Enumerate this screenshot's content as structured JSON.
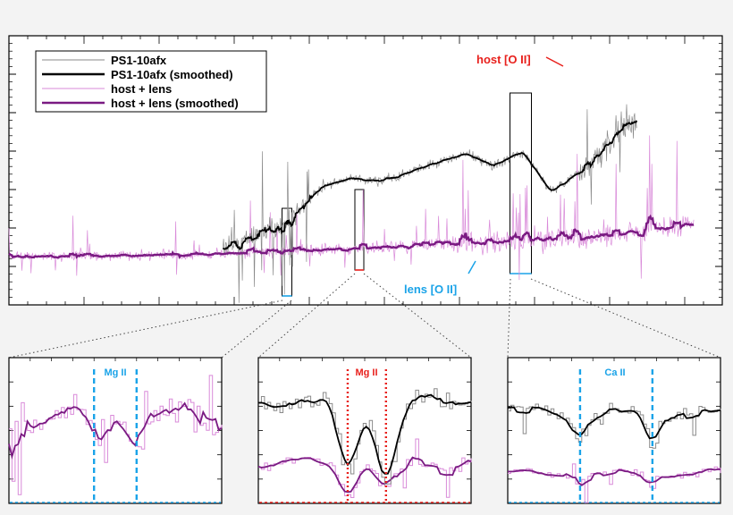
{
  "colors": {
    "grey": "#8a8a8a",
    "black": "#000000",
    "light_purple": "#d98ad9",
    "purple": "#7a1a82",
    "red": "#e8201c",
    "blue": "#1aa3e8",
    "background": "#f3f3f3"
  },
  "chart_data": [
    {
      "type": "line",
      "panel": "main",
      "title": "",
      "xlabel": "",
      "ylabel": "",
      "xlim": [
        0,
        100
      ],
      "ylim": [
        0,
        10
      ],
      "grid": false,
      "legend_position": "top-left",
      "series": [
        {
          "name": "PS1-10afx",
          "color_key": "grey",
          "style": "thin",
          "x": [
            30,
            33,
            36,
            40,
            44,
            48,
            52,
            56,
            60,
            64,
            68,
            72,
            76,
            80,
            84,
            86,
            88
          ],
          "y": [
            2.0,
            2.4,
            2.7,
            3.3,
            4.4,
            4.7,
            4.6,
            4.9,
            5.3,
            5.6,
            5.2,
            5.7,
            4.2,
            4.9,
            5.9,
            6.6,
            6.9
          ]
        },
        {
          "name": "PS1-10afx (smoothed)",
          "color_key": "black",
          "style": "thick",
          "x": [
            30,
            33,
            36,
            40,
            44,
            48,
            52,
            56,
            60,
            64,
            68,
            72,
            76,
            80,
            84,
            86,
            88
          ],
          "y": [
            2.0,
            2.4,
            2.7,
            3.3,
            4.4,
            4.7,
            4.6,
            4.9,
            5.3,
            5.6,
            5.2,
            5.7,
            4.2,
            4.9,
            5.9,
            6.6,
            6.9
          ]
        },
        {
          "name": "host + lens",
          "color_key": "light_purple",
          "style": "thin",
          "x": [
            0,
            10,
            20,
            30,
            40,
            50,
            60,
            70,
            80,
            90,
            96
          ],
          "y": [
            1.8,
            1.8,
            1.85,
            1.9,
            2.0,
            2.1,
            2.25,
            2.35,
            2.5,
            2.75,
            2.95
          ]
        },
        {
          "name": "host + lens (smoothed)",
          "color_key": "purple",
          "style": "thick",
          "x": [
            0,
            10,
            20,
            30,
            40,
            50,
            60,
            70,
            80,
            90,
            96
          ],
          "y": [
            1.8,
            1.8,
            1.85,
            1.9,
            2.0,
            2.1,
            2.25,
            2.35,
            2.5,
            2.75,
            2.95
          ]
        }
      ],
      "annotations": [
        {
          "text": "host [O II]",
          "color_key": "red",
          "x": 69,
          "y": 8.8
        },
        {
          "text": "lens [O II]",
          "color_key": "blue",
          "x": 55,
          "y": 0.8
        }
      ]
    },
    {
      "type": "line",
      "panel": "zoom-1",
      "line_label": "Mg II",
      "line_color_key": "blue",
      "line_positions": [
        40,
        60
      ],
      "series_names": [
        "host + lens",
        "host + lens (smoothed)"
      ]
    },
    {
      "type": "line",
      "panel": "zoom-2",
      "line_label": "Mg II",
      "line_color_key": "red",
      "line_positions": [
        42,
        60
      ],
      "series_names": [
        "PS1-10afx",
        "PS1-10afx (smoothed)",
        "host + lens",
        "host + lens (smoothed)"
      ]
    },
    {
      "type": "line",
      "panel": "zoom-3",
      "line_label": "Ca II",
      "line_color_key": "blue",
      "line_positions": [
        34,
        68
      ],
      "series_names": [
        "PS1-10afx",
        "PS1-10afx (smoothed)",
        "host + lens",
        "host + lens (smoothed)"
      ]
    }
  ]
}
